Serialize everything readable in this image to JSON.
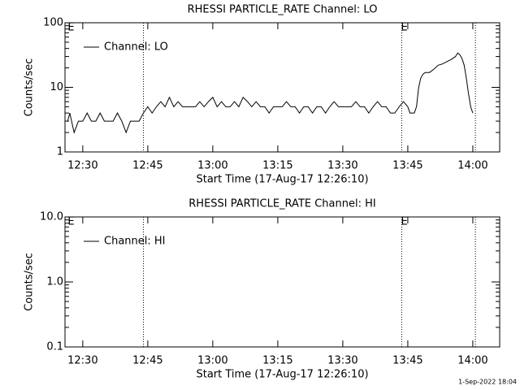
{
  "chart_data": [
    {
      "type": "line",
      "title": "RHESSI PARTICLE_RATE Channel: LO",
      "xlabel": "Start Time (17-Aug-17 12:26:10)",
      "ylabel": "Counts/sec",
      "xlim": [
        25.9,
        126.2
      ],
      "xticks": [
        {
          "value": 30,
          "label": "12:30"
        },
        {
          "value": 45,
          "label": "12:45"
        },
        {
          "value": 60,
          "label": "13:00"
        },
        {
          "value": 75,
          "label": "13:15"
        },
        {
          "value": 90,
          "label": "13:30"
        },
        {
          "value": 105,
          "label": "13:45"
        },
        {
          "value": 120,
          "label": "14:00"
        }
      ],
      "ylim": [
        1,
        100
      ],
      "yticks": [
        1,
        10,
        100
      ],
      "log_y": true,
      "vlines": [
        44.0,
        103.6,
        120.6
      ],
      "annotations": [
        {
          "text": "E",
          "x": 27.3
        },
        {
          "text": "E",
          "x": 104.2
        }
      ],
      "series": [
        {
          "name": "Channel: LO",
          "color": "#000000",
          "x": [
            26.5,
            27,
            28,
            29,
            30,
            31,
            32,
            33,
            34,
            35,
            36,
            37,
            38,
            39,
            40,
            41,
            42,
            43,
            44,
            45,
            46,
            47,
            48,
            49,
            50,
            51,
            52,
            53,
            54,
            55,
            56,
            57,
            58,
            59,
            60,
            61,
            62,
            63,
            64,
            65,
            66,
            67,
            68,
            69,
            70,
            71,
            72,
            73,
            74,
            75,
            76,
            77,
            78,
            79,
            80,
            81,
            82,
            83,
            84,
            85,
            86,
            87,
            88,
            89,
            90,
            91,
            92,
            93,
            94,
            95,
            96,
            97,
            98,
            99,
            100,
            101,
            102,
            103,
            104,
            105,
            105.5,
            106,
            106.5,
            107,
            107.5,
            108,
            108.5,
            109,
            110,
            111,
            112,
            113,
            114,
            115,
            116,
            116.5,
            117,
            117.5,
            118,
            118.5,
            119,
            119.5,
            120
          ],
          "values": [
            3,
            4,
            2,
            3,
            3,
            4,
            3,
            3,
            4,
            3,
            3,
            3,
            4,
            3,
            2,
            3,
            3,
            3,
            4,
            5,
            4,
            5,
            6,
            5,
            7,
            5,
            6,
            5,
            5,
            5,
            5,
            6,
            5,
            6,
            7,
            5,
            6,
            5,
            5,
            6,
            5,
            7,
            6,
            5,
            6,
            5,
            5,
            4,
            5,
            5,
            5,
            6,
            5,
            5,
            4,
            5,
            5,
            4,
            5,
            5,
            4,
            5,
            6,
            5,
            5,
            5,
            5,
            6,
            5,
            5,
            4,
            5,
            6,
            5,
            5,
            4,
            4,
            5,
            6,
            5,
            4,
            4,
            4,
            5,
            10,
            14,
            16,
            17,
            17,
            19,
            22,
            23,
            25,
            27,
            30,
            34,
            32,
            28,
            22,
            14,
            8,
            5,
            4
          ]
        }
      ]
    },
    {
      "type": "line",
      "title": "RHESSI PARTICLE_RATE Channel: HI",
      "xlabel": "Start Time (17-Aug-17 12:26:10)",
      "ylabel": "Counts/sec",
      "xlim": [
        25.9,
        126.2
      ],
      "xticks": [
        {
          "value": 30,
          "label": "12:30"
        },
        {
          "value": 45,
          "label": "12:45"
        },
        {
          "value": 60,
          "label": "13:00"
        },
        {
          "value": 75,
          "label": "13:15"
        },
        {
          "value": 90,
          "label": "13:30"
        },
        {
          "value": 105,
          "label": "13:45"
        },
        {
          "value": 120,
          "label": "14:00"
        }
      ],
      "ylim": [
        0.1,
        10
      ],
      "yticks": [
        0.1,
        {
          "value": 1,
          "label": "1.0"
        },
        {
          "value": 10,
          "label": "10.0"
        }
      ],
      "log_y": true,
      "vlines": [
        44.0,
        103.6,
        120.6
      ],
      "annotations": [
        {
          "text": "E",
          "x": 27.3
        },
        {
          "text": "E",
          "x": 104.2
        }
      ],
      "series": [
        {
          "name": "Channel: HI",
          "color": "#000000",
          "x": [],
          "values": []
        }
      ]
    }
  ],
  "footer": "1-Sep-2022 18:04"
}
